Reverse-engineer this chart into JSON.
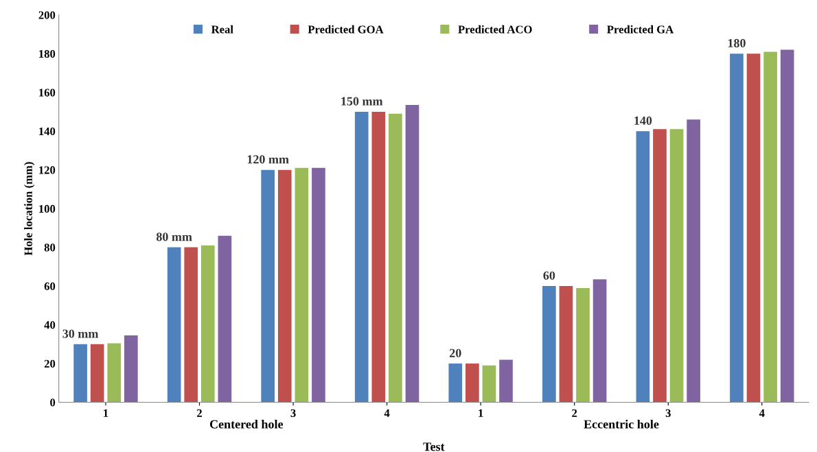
{
  "chart_data": {
    "type": "bar",
    "xlabel": "Test",
    "ylabel": "Hole location (mm)",
    "categories": [
      "1",
      "2",
      "3",
      "4",
      "1",
      "2",
      "3",
      "4"
    ],
    "series": [
      {
        "name": "Real",
        "color": "#4f81bd",
        "values": [
          30,
          80,
          120,
          150,
          20,
          60,
          140,
          180
        ],
        "value_labels": [
          "30 mm",
          "80 mm",
          "120 mm",
          "150 mm",
          "20",
          "60",
          "140",
          "180"
        ]
      },
      {
        "name": "Predicted GOA",
        "color": "#c0504d",
        "values": [
          30,
          80,
          120,
          150,
          20,
          60,
          141,
          180
        ]
      },
      {
        "name": "Predicted ACO",
        "color": "#9bbb59",
        "values": [
          30.5,
          81,
          121,
          149,
          19,
          59,
          141,
          181
        ]
      },
      {
        "name": "Predicted GA",
        "color": "#8064a2",
        "values": [
          34.5,
          86,
          121,
          153.5,
          22,
          63.5,
          146,
          182
        ]
      }
    ],
    "annotations": [
      "Centered hole",
      "Eccentric hole"
    ],
    "ylim": [
      0,
      200
    ],
    "yticks": [
      0,
      20,
      40,
      60,
      80,
      100,
      120,
      140,
      160,
      180,
      200
    ],
    "grid": false,
    "legend": "top"
  }
}
